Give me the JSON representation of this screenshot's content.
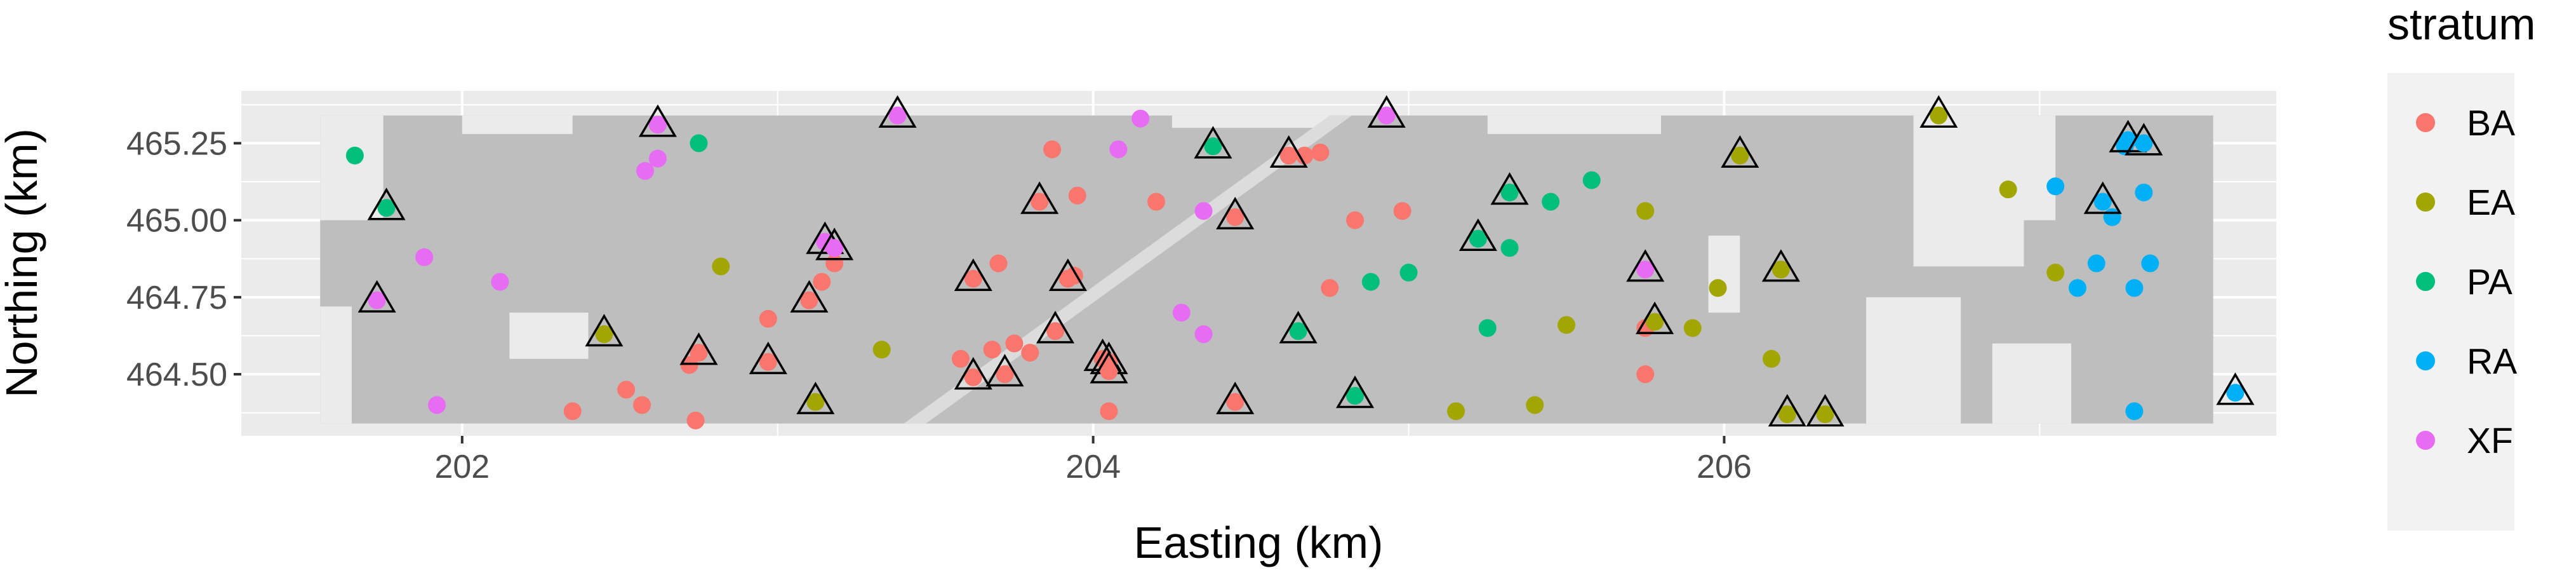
{
  "chart_data": {
    "type": "scatter",
    "xlabel": "Easting (km)",
    "ylabel": "Northing (km)",
    "xlim": [
      201.3,
      207.75
    ],
    "ylim": [
      464.3,
      465.42
    ],
    "x_ticks": [
      202,
      204,
      206
    ],
    "y_ticks": [
      464.5,
      464.75,
      465.0,
      465.25
    ],
    "x_tick_labels": [
      "202",
      "204",
      "206"
    ],
    "y_tick_labels": [
      "464.50",
      "464.75",
      "465.00",
      "465.25"
    ],
    "grid": true,
    "background_layer": "grey raster map of the sampling region",
    "legend": {
      "title": "stratum",
      "position": "right",
      "entries": [
        {
          "label": "BA",
          "color": "#F8766D"
        },
        {
          "label": "EA",
          "color": "#A3A500"
        },
        {
          "label": "PA",
          "color": "#00BF7D"
        },
        {
          "label": "RA",
          "color": "#00B0F6"
        },
        {
          "label": "XF",
          "color": "#E76BF3"
        }
      ]
    },
    "series": [
      {
        "name": "BA",
        "points": [
          [
            202.35,
            464.38
          ],
          [
            202.52,
            464.45
          ],
          [
            202.57,
            464.4
          ],
          [
            202.72,
            464.53
          ],
          [
            202.74,
            464.35
          ],
          [
            202.97,
            464.68
          ],
          [
            203.14,
            464.8
          ],
          [
            203.18,
            464.86
          ],
          [
            203.58,
            464.55
          ],
          [
            203.68,
            464.58
          ],
          [
            203.7,
            464.86
          ],
          [
            203.75,
            464.6
          ],
          [
            203.8,
            464.57
          ],
          [
            203.87,
            465.23
          ],
          [
            203.94,
            464.82
          ],
          [
            203.95,
            465.08
          ],
          [
            204.05,
            464.38
          ],
          [
            204.2,
            465.06
          ],
          [
            204.67,
            465.21
          ],
          [
            204.72,
            465.22
          ],
          [
            204.75,
            464.78
          ],
          [
            204.83,
            465.0
          ],
          [
            204.98,
            465.03
          ],
          [
            205.75,
            464.65
          ],
          [
            205.75,
            464.5
          ]
        ]
      },
      {
        "name": "EA",
        "points": [
          [
            202.82,
            464.85
          ],
          [
            203.33,
            464.58
          ],
          [
            205.15,
            464.38
          ],
          [
            205.4,
            464.4
          ],
          [
            205.5,
            464.66
          ],
          [
            205.75,
            465.03
          ],
          [
            205.9,
            464.65
          ],
          [
            205.98,
            464.78
          ],
          [
            206.15,
            464.55
          ],
          [
            206.9,
            465.1
          ],
          [
            207.05,
            464.83
          ]
        ]
      },
      {
        "name": "PA",
        "points": [
          [
            201.66,
            465.21
          ],
          [
            202.75,
            465.25
          ],
          [
            204.88,
            464.8
          ],
          [
            205.0,
            464.83
          ],
          [
            205.25,
            464.65
          ],
          [
            205.32,
            464.91
          ],
          [
            205.45,
            465.06
          ],
          [
            205.58,
            465.13
          ]
        ]
      },
      {
        "name": "RA",
        "points": [
          [
            207.05,
            465.11
          ],
          [
            207.12,
            464.78
          ],
          [
            207.18,
            464.86
          ],
          [
            207.23,
            465.01
          ],
          [
            207.27,
            465.24
          ],
          [
            207.3,
            464.78
          ],
          [
            207.33,
            465.09
          ],
          [
            207.35,
            464.86
          ],
          [
            207.3,
            464.38
          ]
        ]
      },
      {
        "name": "XF",
        "points": [
          [
            201.88,
            464.88
          ],
          [
            201.92,
            464.4
          ],
          [
            202.12,
            464.8
          ],
          [
            202.58,
            465.16
          ],
          [
            202.62,
            465.2
          ],
          [
            204.15,
            465.33
          ],
          [
            204.08,
            465.23
          ],
          [
            204.28,
            464.7
          ],
          [
            204.35,
            465.03
          ],
          [
            204.35,
            464.63
          ]
        ]
      }
    ],
    "triangle_markers": {
      "description": "open triangles overlaid on points",
      "points": [
        [
          201.73,
          464.74,
          "XF"
        ],
        [
          201.76,
          465.04,
          "PA"
        ],
        [
          202.45,
          464.63,
          "EA"
        ],
        [
          202.62,
          465.31,
          "XF"
        ],
        [
          202.75,
          464.57,
          "BA"
        ],
        [
          202.97,
          464.54,
          "BA"
        ],
        [
          203.1,
          464.74,
          "BA"
        ],
        [
          203.12,
          464.41,
          "EA"
        ],
        [
          203.15,
          464.93,
          "XF"
        ],
        [
          203.18,
          464.91,
          "XF"
        ],
        [
          203.38,
          465.34,
          "XF"
        ],
        [
          203.62,
          464.81,
          "BA"
        ],
        [
          203.62,
          464.49,
          "BA"
        ],
        [
          203.72,
          464.5,
          "BA"
        ],
        [
          203.83,
          465.06,
          "BA"
        ],
        [
          203.88,
          464.64,
          "BA"
        ],
        [
          203.92,
          464.81,
          "BA"
        ],
        [
          204.03,
          464.55,
          "BA"
        ],
        [
          204.05,
          464.54,
          "BA"
        ],
        [
          204.05,
          464.51,
          "BA"
        ],
        [
          204.38,
          465.24,
          "PA"
        ],
        [
          204.45,
          465.01,
          "BA"
        ],
        [
          204.45,
          464.41,
          "BA"
        ],
        [
          204.62,
          465.21,
          "BA"
        ],
        [
          204.65,
          464.64,
          "PA"
        ],
        [
          204.83,
          464.43,
          "PA"
        ],
        [
          204.93,
          465.34,
          "XF"
        ],
        [
          205.22,
          464.94,
          "PA"
        ],
        [
          205.32,
          465.09,
          "PA"
        ],
        [
          205.75,
          464.84,
          "XF"
        ],
        [
          205.78,
          464.67,
          "EA"
        ],
        [
          206.05,
          465.21,
          "EA"
        ],
        [
          206.18,
          464.84,
          "EA"
        ],
        [
          206.2,
          464.37,
          "EA"
        ],
        [
          206.32,
          464.37,
          "EA"
        ],
        [
          206.68,
          465.34,
          "EA"
        ],
        [
          207.2,
          465.06,
          "RA"
        ],
        [
          207.28,
          465.26,
          "RA"
        ],
        [
          207.33,
          465.25,
          "RA"
        ],
        [
          207.62,
          464.44,
          "RA"
        ]
      ]
    }
  }
}
